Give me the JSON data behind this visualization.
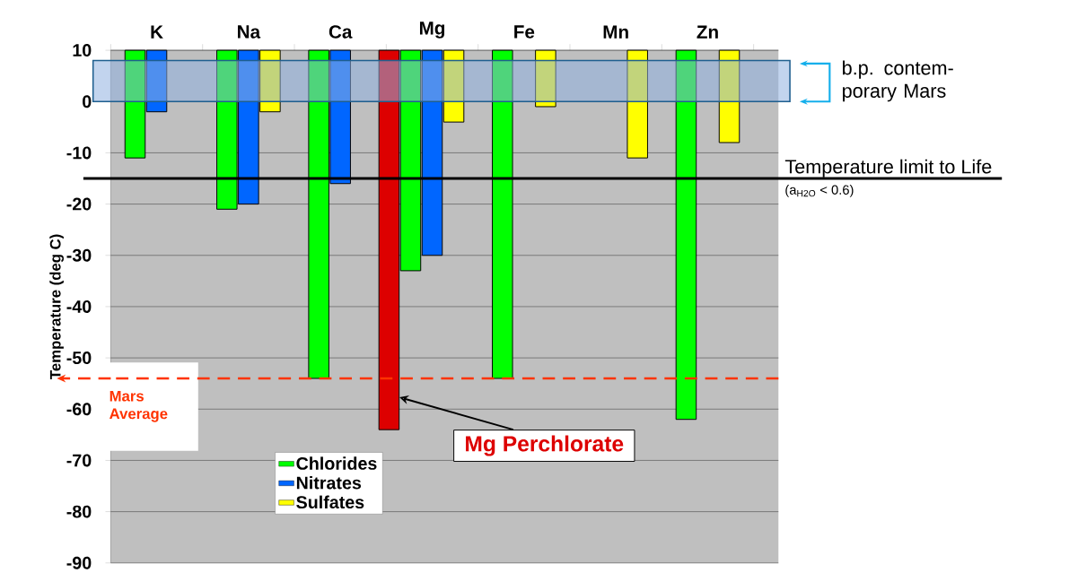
{
  "chart_data": {
    "type": "bar",
    "ylabel": "Temperature (deg C)",
    "categories": [
      "K",
      "Na",
      "Ca",
      "Mg",
      "Fe",
      "Mn",
      "Zn"
    ],
    "series": [
      {
        "color": "#dd0000",
        "values": [
          null,
          null,
          null,
          -74,
          null,
          null,
          null
        ],
        "base": [
          null,
          null,
          null,
          10,
          null,
          null,
          null
        ]
      },
      {
        "name": "Chlorides",
        "color": "#00ff00",
        "values": [
          -21,
          -31,
          -64,
          -43,
          -64,
          null,
          -72
        ],
        "base": [
          10,
          10,
          10,
          10,
          10,
          null,
          10
        ]
      },
      {
        "name": "Nitrates",
        "color": "#0066ff",
        "values": [
          -12,
          -30,
          -26,
          -40,
          null,
          null,
          null
        ],
        "base": [
          10,
          10,
          10,
          10,
          null,
          null,
          null
        ]
      },
      {
        "name": "Sulfates",
        "color": "#ffff00",
        "values": [
          null,
          -12,
          null,
          -14,
          -11,
          -21,
          -18
        ],
        "base": [
          null,
          10,
          null,
          10,
          10,
          10,
          10
        ]
      }
    ],
    "ylim": [
      -90,
      10
    ],
    "yticks": [
      -90,
      -80,
      -70,
      -60,
      -50,
      -40,
      -30,
      -20,
      -10,
      0,
      10
    ],
    "grid": "y",
    "legend": "bottom left",
    "ref_lines": [
      {
        "axis": "y",
        "value": -15,
        "label": "Temperature limit to Life",
        "color": "#000000"
      },
      {
        "axis": "y",
        "value": -54,
        "label": "Mars Average",
        "color": "#ff3300",
        "line_style": "dashed"
      }
    ],
    "bands": [
      {
        "axis": "y",
        "from": 0,
        "to": 8,
        "label": "b.p. contem- porary Mars",
        "color": "#8fb0e0"
      }
    ],
    "annotations": [
      "(a$_{H2O}$ < 0.6)",
      "Mg Perchlorate"
    ]
  }
}
